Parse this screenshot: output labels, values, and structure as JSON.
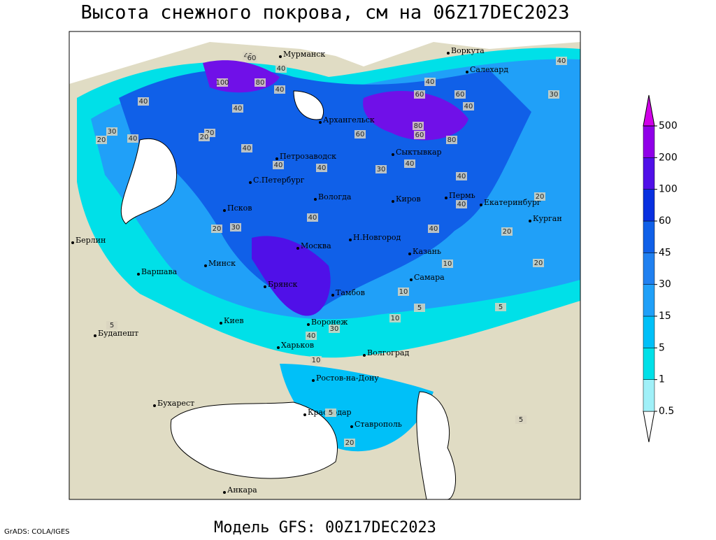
{
  "title": "Высота снежного покрова, см на 06Z17DEC2023",
  "subtitle": "Модель GFS: 00Z17DEC2023",
  "credit": "GrADS: COLA/IGES",
  "colorbar": {
    "levels": [
      0.5,
      1,
      5,
      15,
      30,
      45,
      60,
      100,
      200,
      500
    ],
    "colors": [
      "#ffffff",
      "#a0f0f8",
      "#00e0e8",
      "#00c0f8",
      "#20a0f8",
      "#2080f0",
      "#1060e8",
      "#0830e0",
      "#5010e8",
      "#9000e8",
      "#d000e8"
    ]
  },
  "cities": [
    "Мурманск",
    "Воркута",
    "Салехард",
    "Архангельск",
    "Сыктывкар",
    "Петрозаводск",
    "С.Петербург",
    "Вологда",
    "Киров",
    "Пермь",
    "Екатеринбург",
    "Курган",
    "Псков",
    "Берлин",
    "Н.Новгород",
    "Москва",
    "Казань",
    "Минск",
    "Варшава",
    "Самара",
    "Брянск",
    "Тамбов",
    "Воронеж",
    "Киев",
    "Будапешт",
    "Харьков",
    "Волгоград",
    "Ростов-на-Дону",
    "Бухарест",
    "Краснодар",
    "Ставрополь",
    "Анкара"
  ],
  "contour_labels": [
    40,
    60,
    40,
    100,
    80,
    40,
    40,
    40,
    40,
    30,
    20,
    40,
    40,
    20,
    40,
    60,
    80,
    60,
    40,
    60,
    40,
    30,
    40,
    40,
    40,
    30,
    20,
    20,
    40,
    40,
    20,
    10,
    10,
    20,
    30,
    10,
    5,
    5,
    5,
    10,
    5,
    5,
    20,
    30,
    40,
    20,
    60,
    80,
    40
  ]
}
